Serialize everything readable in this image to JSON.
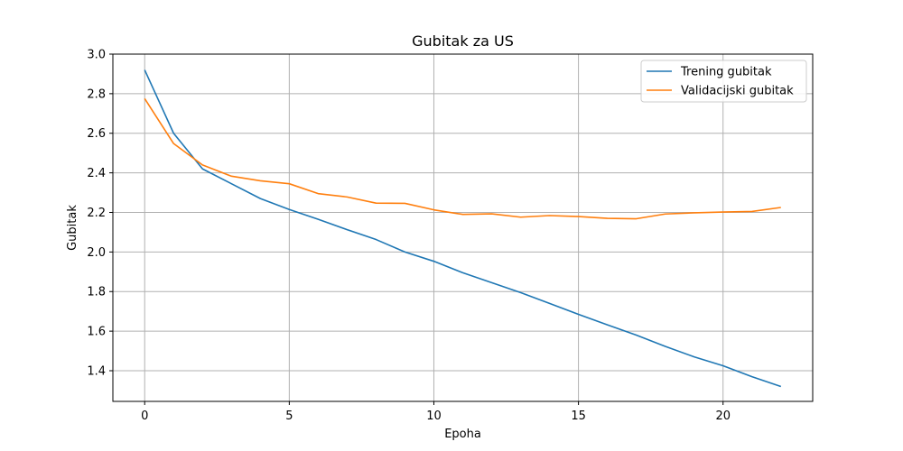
{
  "chart_data": {
    "type": "line",
    "title": "Gubitak za US",
    "xlabel": "Epoha",
    "ylabel": "Gubitak",
    "xlim": [
      -1.1,
      23.1
    ],
    "ylim": [
      1.245,
      3.0
    ],
    "xticks": [
      0,
      5,
      10,
      15,
      20
    ],
    "yticks": [
      1.4,
      1.6,
      1.8,
      2.0,
      2.2,
      2.4,
      2.6,
      2.8,
      3.0
    ],
    "grid": true,
    "legend_position": "upper right",
    "x": [
      0,
      1,
      2,
      3,
      4,
      5,
      6,
      7,
      8,
      9,
      10,
      11,
      12,
      13,
      14,
      15,
      16,
      17,
      18,
      19,
      20,
      21,
      22
    ],
    "series": [
      {
        "name": "Trening gubitak",
        "color": "#1f77b4",
        "values": [
          2.92,
          2.6,
          2.42,
          2.345,
          2.27,
          2.215,
          2.165,
          2.113,
          2.063,
          2.0,
          1.953,
          1.895,
          1.845,
          1.795,
          1.74,
          1.685,
          1.632,
          1.58,
          1.523,
          1.47,
          1.425,
          1.37,
          1.32
        ]
      },
      {
        "name": "Validacijski gubitak",
        "color": "#ff7f0e",
        "values": [
          2.775,
          2.548,
          2.44,
          2.383,
          2.36,
          2.345,
          2.295,
          2.278,
          2.247,
          2.246,
          2.213,
          2.19,
          2.193,
          2.176,
          2.184,
          2.179,
          2.17,
          2.168,
          2.192,
          2.198,
          2.202,
          2.205,
          2.225
        ]
      }
    ]
  }
}
